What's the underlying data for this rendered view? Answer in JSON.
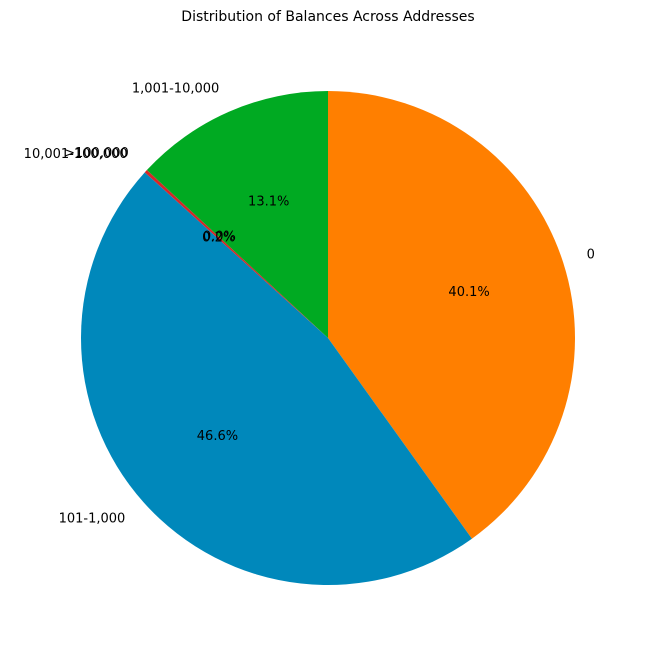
{
  "chart_data": {
    "type": "pie",
    "title": "Distribution of Balances Across Addresses",
    "categories": [
      "0",
      "101-1,000",
      "10,001-100,000",
      ">100,000",
      "1,001-10,000"
    ],
    "values": [
      40.1,
      46.6,
      0.2,
      0.0,
      13.1
    ],
    "value_labels": [
      "40.1%",
      "46.6%",
      "0.2%",
      "0.0%",
      "13.1%"
    ],
    "colors": [
      "#ff7f00",
      "#0088bb",
      "#d62728",
      "#9467bd",
      "#00aa22"
    ]
  }
}
